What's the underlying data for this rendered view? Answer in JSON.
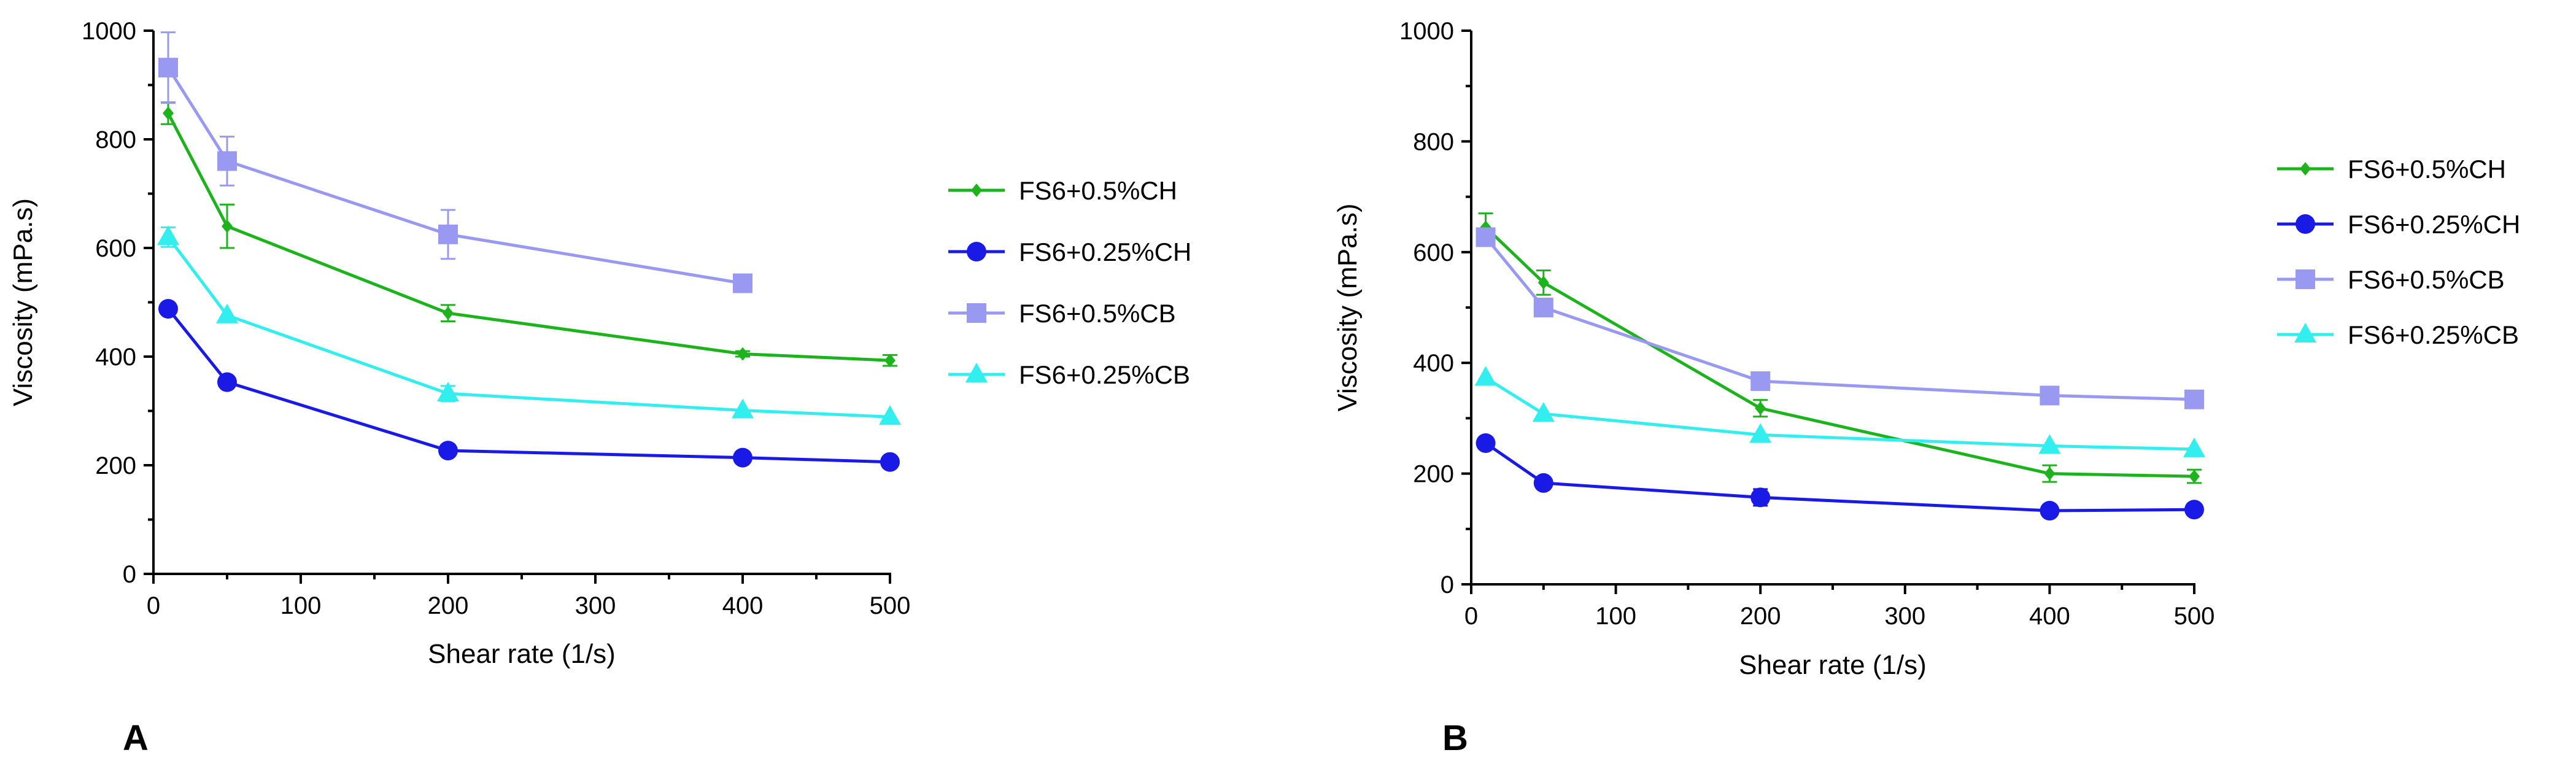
{
  "chart_data": [
    {
      "type": "line",
      "panel_label": "A",
      "xlabel": "Shear rate (1/s)",
      "ylabel": "Viscosity (mPa.s)",
      "xlim": [
        0,
        500
      ],
      "ylim": [
        0,
        1000
      ],
      "xticks": [
        0,
        100,
        200,
        300,
        400,
        500
      ],
      "yticks": [
        0,
        200,
        400,
        600,
        800,
        1000
      ],
      "legend_position": "right",
      "series": [
        {
          "name": "FS6+0.5%CH",
          "color": "#1db31d",
          "marker": "diamond",
          "x": [
            10,
            50,
            200,
            400,
            500
          ],
          "y": [
            848,
            640,
            480,
            405,
            393
          ],
          "err": [
            20,
            40,
            15,
            5,
            10
          ]
        },
        {
          "name": "FS6+0.25%CH",
          "color": "#1a1ae6",
          "marker": "circle",
          "x": [
            10,
            50,
            200,
            400,
            500
          ],
          "y": [
            488,
            353,
            227,
            214,
            206
          ],
          "err": [
            0,
            0,
            0,
            0,
            0
          ]
        },
        {
          "name": "FS6+0.5%CB",
          "color": "#9999f2",
          "marker": "square",
          "x": [
            10,
            50,
            200,
            400
          ],
          "y": [
            932,
            760,
            625,
            535
          ],
          "err": [
            65,
            45,
            45,
            5
          ]
        },
        {
          "name": "FS6+0.25%CB",
          "color": "#33eeee",
          "marker": "triangle",
          "x": [
            10,
            50,
            200,
            400,
            500
          ],
          "y": [
            620,
            476,
            332,
            301,
            289
          ],
          "err": [
            18,
            0,
            14,
            0,
            0
          ]
        }
      ]
    },
    {
      "type": "line",
      "panel_label": "B",
      "xlabel": "Shear rate (1/s)",
      "ylabel": "Viscosity (mPa.s)",
      "xlim": [
        0,
        500
      ],
      "ylim": [
        0,
        1000
      ],
      "xticks": [
        0,
        100,
        200,
        300,
        400,
        500
      ],
      "yticks": [
        0,
        200,
        400,
        600,
        800,
        1000
      ],
      "legend_position": "right",
      "series": [
        {
          "name": "FS6+0.5%CH",
          "color": "#1db31d",
          "marker": "diamond",
          "x": [
            10,
            50,
            200,
            400,
            500
          ],
          "y": [
            645,
            545,
            318,
            200,
            195
          ],
          "err": [
            25,
            22,
            15,
            15,
            12
          ]
        },
        {
          "name": "FS6+0.25%CH",
          "color": "#1a1ae6",
          "marker": "circle",
          "x": [
            10,
            50,
            200,
            400,
            500
          ],
          "y": [
            255,
            183,
            157,
            133,
            135
          ],
          "err": [
            0,
            0,
            15,
            0,
            0
          ]
        },
        {
          "name": "FS6+0.5%CB",
          "color": "#9999f2",
          "marker": "square",
          "x": [
            10,
            50,
            200,
            400,
            500
          ],
          "y": [
            627,
            500,
            367,
            341,
            334
          ],
          "err": [
            10,
            10,
            5,
            8,
            5
          ]
        },
        {
          "name": "FS6+0.25%CB",
          "color": "#33eeee",
          "marker": "triangle",
          "x": [
            10,
            50,
            200,
            400,
            500
          ],
          "y": [
            373,
            308,
            270,
            250,
            244
          ],
          "err": [
            0,
            0,
            0,
            0,
            0
          ]
        }
      ]
    }
  ]
}
